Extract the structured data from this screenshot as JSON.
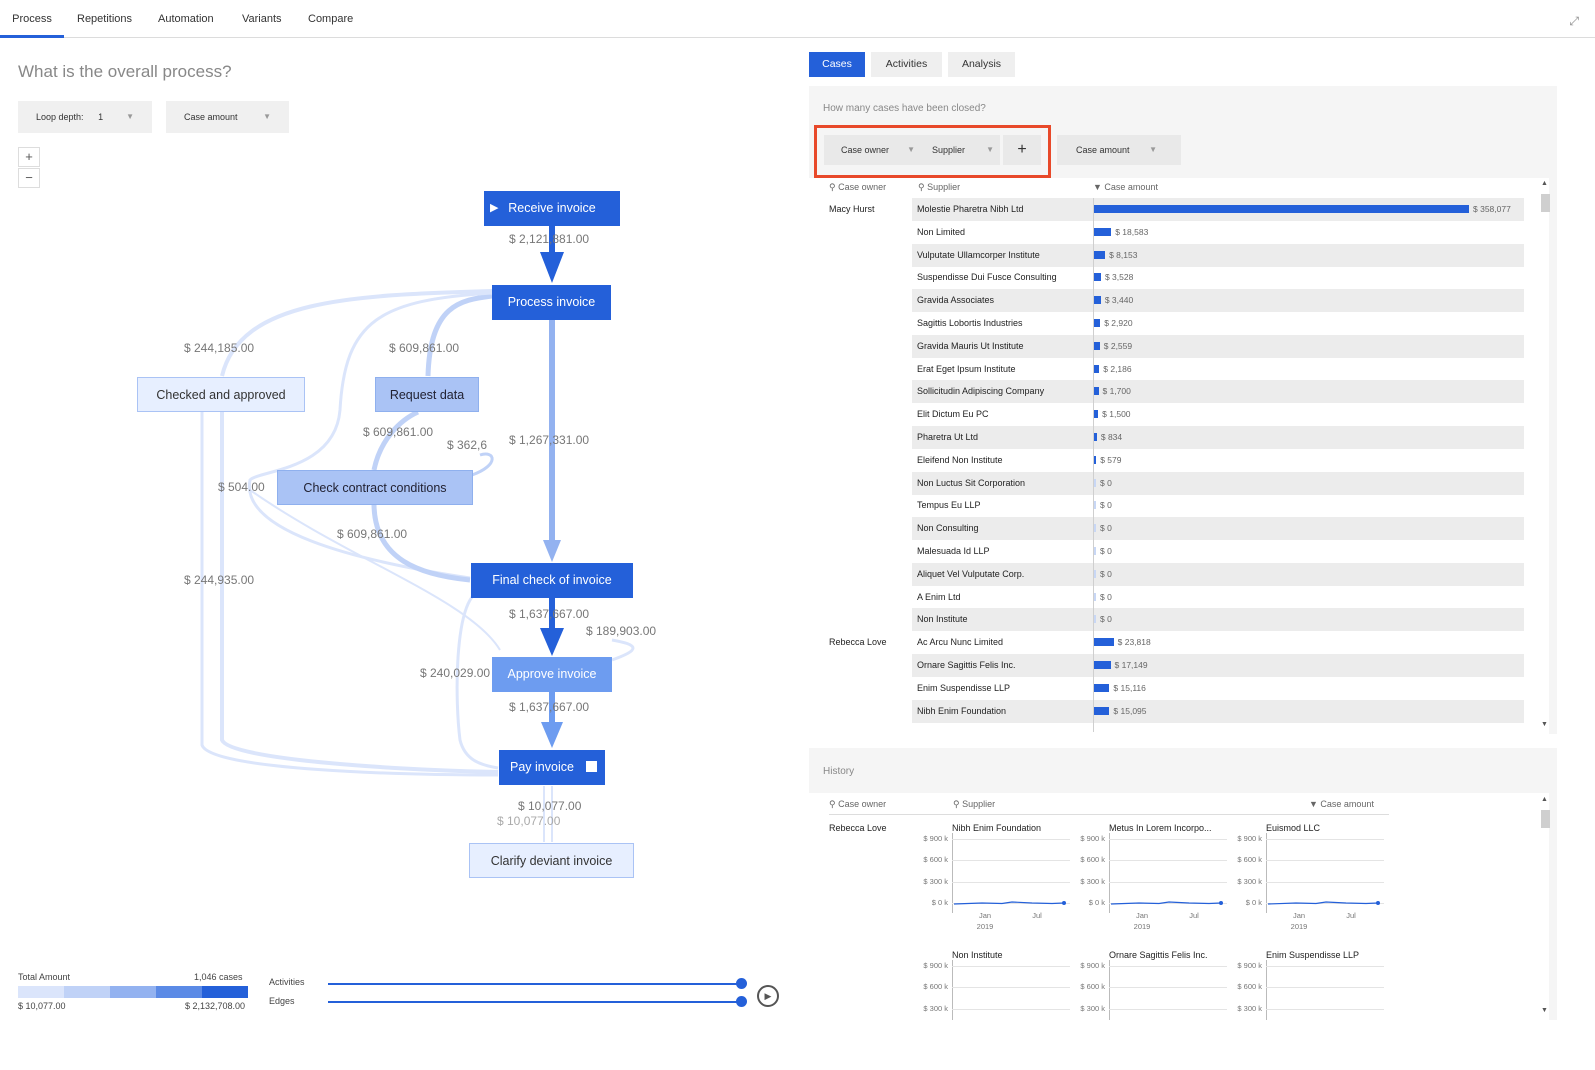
{
  "nav": {
    "tabs": [
      "Process",
      "Repetitions",
      "Automation",
      "Variants",
      "Compare"
    ],
    "active": "Process"
  },
  "left": {
    "question": "What is the overall process?",
    "loop_depth_label": "Loop depth:",
    "loop_depth_value": "1",
    "metric_select": "Case amount",
    "zoom_in": "+",
    "zoom_out": "−"
  },
  "flow": {
    "nodes": {
      "receive": "Receive invoice",
      "process": "Process invoice",
      "checked": "Checked and approved",
      "request": "Request data",
      "contract": "Check contract conditions",
      "final": "Final check of invoice",
      "approve": "Approve invoice",
      "pay": "Pay invoice",
      "clarify": "Clarify deviant invoice"
    },
    "edges": {
      "e1": "$ 2,121,881.00",
      "e2": "$ 244,185.00",
      "e3": "$ 609,861.00",
      "e4": "$ 609,861.00",
      "e5": "$ 362,6",
      "e6": "$ 1,267,331.00",
      "e7": "$ 504.00",
      "e8": "$ 609,861.00",
      "e9": "$ 244,935.00",
      "e10": "$ 1,637,667.00",
      "e11": "$ 189,903.00",
      "e12": "$ 240,029.00",
      "e13": "$ 1,637,667.00",
      "e14": "$ 10,077.00",
      "e15": "$ 10,077.00"
    }
  },
  "legend": {
    "title": "Total Amount",
    "count": "1,046 cases",
    "min": "$ 10,077.00",
    "max": "$ 2,132,708.00",
    "colors": [
      "#dbe5fb",
      "#c0d2f7",
      "#93b2f0",
      "#5b8ae6",
      "#2460d9"
    ],
    "activities_label": "Activities",
    "edges_label": "Edges",
    "activities_level": 1.0,
    "edges_level": 1.0
  },
  "right": {
    "tabs": [
      "Cases",
      "Activities",
      "Analysis"
    ],
    "active_tab": "Cases",
    "question": "How many cases have been closed?",
    "chips": {
      "owner": "Case owner",
      "supplier": "Supplier",
      "add": "+",
      "amount": "Case amount"
    },
    "columns": {
      "owner": "Case owner",
      "supplier": "Supplier",
      "amount": "▼ Case amount"
    },
    "rows": [
      {
        "owner": "Macy Hurst",
        "supplier": "Molestie Pharetra Nibh Ltd",
        "amount": "$ 358,077",
        "value": 358077
      },
      {
        "owner": "",
        "supplier": "Non Limited",
        "amount": "$ 18,583",
        "value": 18583
      },
      {
        "owner": "",
        "supplier": "Vulputate Ullamcorper Institute",
        "amount": "$ 8,153",
        "value": 8153
      },
      {
        "owner": "",
        "supplier": "Suspendisse Dui Fusce Consulting",
        "amount": "$ 3,528",
        "value": 3528
      },
      {
        "owner": "",
        "supplier": "Gravida Associates",
        "amount": "$ 3,440",
        "value": 3440
      },
      {
        "owner": "",
        "supplier": "Sagittis Lobortis Industries",
        "amount": "$ 2,920",
        "value": 2920
      },
      {
        "owner": "",
        "supplier": "Gravida Mauris Ut Institute",
        "amount": "$ 2,559",
        "value": 2559
      },
      {
        "owner": "",
        "supplier": "Erat Eget Ipsum Institute",
        "amount": "$ 2,186",
        "value": 2186
      },
      {
        "owner": "",
        "supplier": "Sollicitudin Adipiscing Company",
        "amount": "$ 1,700",
        "value": 1700
      },
      {
        "owner": "",
        "supplier": "Elit Dictum Eu PC",
        "amount": "$ 1,500",
        "value": 1500
      },
      {
        "owner": "",
        "supplier": "Pharetra Ut Ltd",
        "amount": "$ 834",
        "value": 834
      },
      {
        "owner": "",
        "supplier": "Eleifend Non Institute",
        "amount": "$ 579",
        "value": 579
      },
      {
        "owner": "",
        "supplier": "Non Luctus Sit Corporation",
        "amount": "$ 0",
        "value": 0
      },
      {
        "owner": "",
        "supplier": "Tempus Eu LLP",
        "amount": "$ 0",
        "value": 0
      },
      {
        "owner": "",
        "supplier": "Non Consulting",
        "amount": "$ 0",
        "value": 0
      },
      {
        "owner": "",
        "supplier": "Malesuada Id LLP",
        "amount": "$ 0",
        "value": 0
      },
      {
        "owner": "",
        "supplier": "Aliquet Vel Vulputate Corp.",
        "amount": "$ 0",
        "value": 0
      },
      {
        "owner": "",
        "supplier": "A Enim Ltd",
        "amount": "$ 0",
        "value": 0
      },
      {
        "owner": "",
        "supplier": "Non Institute",
        "amount": "$ 0",
        "value": 0
      },
      {
        "owner": "Rebecca Love",
        "supplier": "Ac Arcu Nunc Limited",
        "amount": "$ 23,818",
        "value": 23818
      },
      {
        "owner": "",
        "supplier": "Ornare Sagittis Felis Inc.",
        "amount": "$ 17,149",
        "value": 17149
      },
      {
        "owner": "",
        "supplier": "Enim Suspendisse LLP",
        "amount": "$ 15,116",
        "value": 15116
      },
      {
        "owner": "",
        "supplier": "Nibh Enim Foundation",
        "amount": "$ 15,095",
        "value": 15095
      }
    ],
    "history": {
      "title": "History",
      "columns": {
        "owner": "Case owner",
        "supplier": "Supplier",
        "amount": "▼ Case amount"
      },
      "owner": "Rebecca Love",
      "y_ticks": [
        "$ 900 k",
        "$ 600 k",
        "$ 300 k",
        "$ 0 k"
      ],
      "x_ticks": [
        {
          "m": "Jan",
          "y": "2019"
        },
        {
          "m": "Jul",
          "y": ""
        }
      ],
      "cells_row1": [
        "Nibh Enim Foundation",
        "Metus In Lorem Incorpo...",
        "Euismod LLC"
      ],
      "cells_row2": [
        "Non Institute",
        "Ornare Sagittis Felis Inc.",
        "Enim Suspendisse LLP"
      ]
    }
  }
}
